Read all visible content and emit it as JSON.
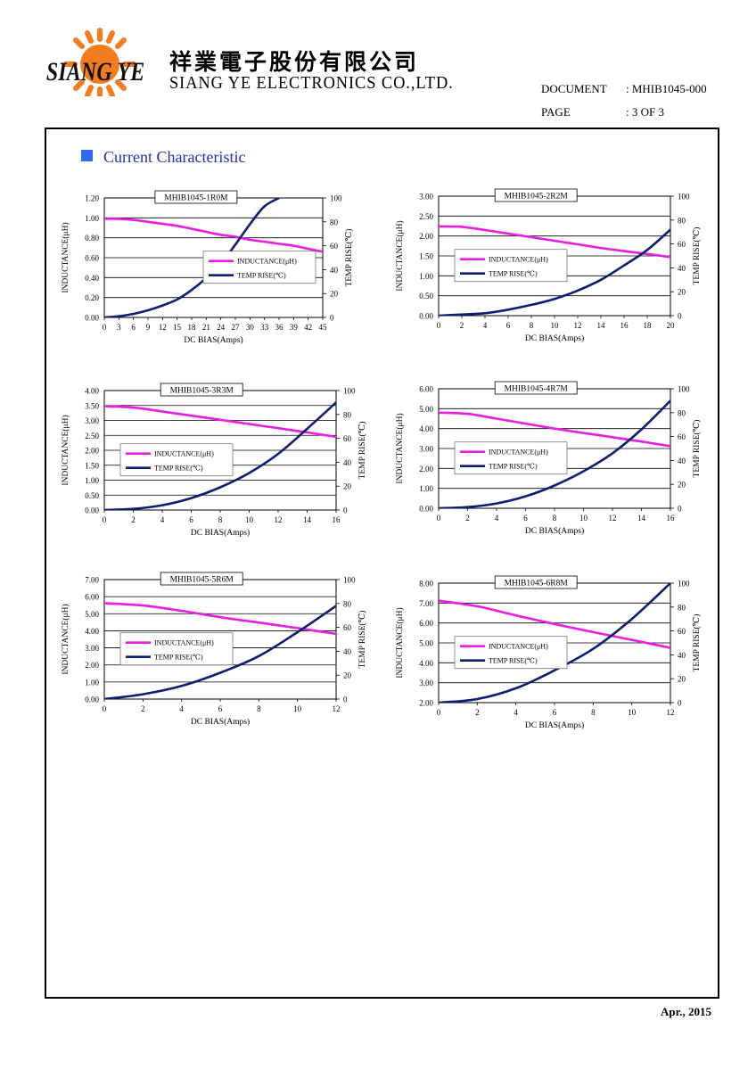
{
  "header": {
    "logo_text": "SIANG YE",
    "company_cn": "祥業電子股份有限公司",
    "company_en": "SIANG YE ELECTRONICS CO.,LTD.",
    "document_label": "DOCUMENT",
    "document_value": ": MHIB1045-000",
    "page_label": "PAGE",
    "page_value": ": 3 OF 3"
  },
  "section_title": "Current Characteristic",
  "footer_date": "Apr., 2015",
  "colors": {
    "inductance": "#e81ce3",
    "temp_rise": "#0b1e72",
    "section": "#1f2fb0",
    "marker": "#3366ff"
  },
  "chart_data": [
    {
      "type": "line",
      "title": "MHIB1045-1R0M",
      "xlabel": "DC BIAS(Amps)",
      "ylabel": "INDUCTANCE(μH)",
      "y2label": "TEMP RISE(℃)",
      "xlim": [
        0,
        45
      ],
      "ylim": [
        0,
        1.2
      ],
      "y2lim": [
        0,
        100
      ],
      "xticks": [
        "0",
        "3",
        "6",
        "9",
        "12",
        "15",
        "18",
        "21",
        "24",
        "27",
        "30",
        "33",
        "36",
        "39",
        "42",
        "45"
      ],
      "yticks": [
        "0.00",
        "0.20",
        "0.40",
        "0.60",
        "0.80",
        "1.00",
        "1.20"
      ],
      "y2ticks": [
        "0",
        "20",
        "40",
        "60",
        "80",
        "100"
      ],
      "series": [
        {
          "name": "INDUCTANCE(μH)",
          "axis": "left",
          "x": [
            0,
            3,
            6,
            9,
            12,
            15,
            18,
            21,
            24,
            27,
            30,
            33,
            36,
            39,
            42,
            45
          ],
          "values": [
            0.99,
            0.99,
            0.98,
            0.96,
            0.94,
            0.92,
            0.89,
            0.86,
            0.83,
            0.81,
            0.78,
            0.76,
            0.74,
            0.72,
            0.69,
            0.66
          ]
        },
        {
          "name": "TEMP RISE(℃)",
          "axis": "right",
          "x": [
            0,
            3,
            6,
            9,
            12,
            15,
            18,
            21,
            24,
            27,
            30,
            33,
            36
          ],
          "values": [
            0,
            1,
            3,
            6,
            10,
            15,
            23,
            33,
            45,
            61,
            78,
            93,
            100
          ]
        }
      ],
      "legend": "center-right"
    },
    {
      "type": "line",
      "title": "MHIB1045-2R2M",
      "xlabel": "DC BIAS(Amps)",
      "ylabel": "INDUCTANCE(μH)",
      "y2label": "TEMP RISE(℃)",
      "xlim": [
        0,
        20
      ],
      "ylim": [
        0,
        3
      ],
      "y2lim": [
        0,
        100
      ],
      "xticks": [
        "0",
        "2",
        "4",
        "6",
        "8",
        "10",
        "12",
        "14",
        "16",
        "18",
        "20"
      ],
      "yticks": [
        "0.00",
        "0.50",
        "1.00",
        "1.50",
        "2.00",
        "2.50",
        "3.00"
      ],
      "y2ticks": [
        "0",
        "20",
        "40",
        "60",
        "80",
        "100"
      ],
      "series": [
        {
          "name": "INDUCTANCE(μH)",
          "axis": "left",
          "x": [
            0,
            2,
            4,
            6,
            8,
            10,
            12,
            14,
            16,
            18,
            20
          ],
          "values": [
            2.24,
            2.23,
            2.15,
            2.06,
            1.97,
            1.88,
            1.79,
            1.7,
            1.62,
            1.55,
            1.47
          ]
        },
        {
          "name": "TEMP RISE(℃)",
          "axis": "right",
          "x": [
            0,
            2,
            4,
            6,
            8,
            10,
            12,
            14,
            16,
            18,
            20
          ],
          "values": [
            0,
            1,
            2,
            5,
            9,
            14,
            21,
            30,
            42,
            55,
            72
          ]
        }
      ],
      "legend": "center-left"
    },
    {
      "type": "line",
      "title": "MHIB1045-3R3M",
      "xlabel": "DC BIAS(Amps)",
      "ylabel": "INDUCTANCE(μH)",
      "y2label": "TEMP RISE(℃)",
      "xlim": [
        0,
        16
      ],
      "ylim": [
        0,
        4
      ],
      "y2lim": [
        0,
        100
      ],
      "xticks": [
        "0",
        "2",
        "4",
        "6",
        "8",
        "10",
        "12",
        "14",
        "16"
      ],
      "yticks": [
        "0.00",
        "0.50",
        "1.00",
        "1.50",
        "2.00",
        "2.50",
        "3.00",
        "3.50",
        "4.00"
      ],
      "y2ticks": [
        "0",
        "20",
        "40",
        "60",
        "80",
        "100"
      ],
      "series": [
        {
          "name": "INDUCTANCE(μH)",
          "axis": "left",
          "x": [
            0,
            2,
            4,
            6,
            8,
            10,
            12,
            14,
            16
          ],
          "values": [
            3.48,
            3.43,
            3.3,
            3.16,
            3.02,
            2.88,
            2.74,
            2.6,
            2.45
          ]
        },
        {
          "name": "TEMP RISE(℃)",
          "axis": "right",
          "x": [
            0,
            2,
            4,
            6,
            8,
            10,
            12,
            14,
            16
          ],
          "values": [
            0,
            1,
            4,
            10,
            19,
            31,
            47,
            68,
            90
          ]
        }
      ],
      "legend": "center-left"
    },
    {
      "type": "line",
      "title": "MHIB1045-4R7M",
      "xlabel": "DC BIAS(Amps)",
      "ylabel": "INDUCTANCE(μH)",
      "y2label": "TEMP RISE(℃)",
      "xlim": [
        0,
        16
      ],
      "ylim": [
        0,
        6
      ],
      "y2lim": [
        0,
        100
      ],
      "xticks": [
        "0",
        "2",
        "4",
        "6",
        "8",
        "10",
        "12",
        "14",
        "16"
      ],
      "yticks": [
        "0.00",
        "1.00",
        "2.00",
        "3.00",
        "4.00",
        "5.00",
        "6.00"
      ],
      "y2ticks": [
        "0",
        "20",
        "40",
        "60",
        "80",
        "100"
      ],
      "series": [
        {
          "name": "INDUCTANCE(μH)",
          "axis": "left",
          "x": [
            0,
            2,
            4,
            6,
            8,
            10,
            12,
            14,
            16
          ],
          "values": [
            4.8,
            4.74,
            4.5,
            4.25,
            4.0,
            3.78,
            3.57,
            3.35,
            3.12
          ]
        },
        {
          "name": "TEMP RISE(℃)",
          "axis": "right",
          "x": [
            0,
            2,
            4,
            6,
            8,
            10,
            12,
            14,
            16
          ],
          "values": [
            0,
            1,
            4,
            10,
            19,
            31,
            46,
            66,
            90
          ]
        }
      ],
      "legend": "center-left"
    },
    {
      "type": "line",
      "title": "MHIB1045-5R6M",
      "xlabel": "DC BIAS(Amps)",
      "ylabel": "INDUCTANCE(μH)",
      "y2label": "TEMP RISE(℃)",
      "xlim": [
        0,
        12
      ],
      "ylim": [
        0,
        7
      ],
      "y2lim": [
        0,
        100
      ],
      "xticks": [
        "0",
        "2",
        "4",
        "6",
        "8",
        "10",
        "12"
      ],
      "yticks": [
        "0.00",
        "1.00",
        "2.00",
        "3.00",
        "4.00",
        "5.00",
        "6.00",
        "7.00"
      ],
      "y2ticks": [
        "0",
        "20",
        "40",
        "60",
        "80",
        "100"
      ],
      "series": [
        {
          "name": "INDUCTANCE(μH)",
          "axis": "left",
          "x": [
            0,
            2,
            4,
            6,
            8,
            10,
            12
          ],
          "values": [
            5.62,
            5.48,
            5.17,
            4.8,
            4.48,
            4.16,
            3.82
          ]
        },
        {
          "name": "TEMP RISE(℃)",
          "axis": "right",
          "x": [
            0,
            2,
            4,
            6,
            8,
            10,
            12
          ],
          "values": [
            0,
            4,
            11,
            22,
            36,
            56,
            78
          ]
        }
      ],
      "legend": "center-left"
    },
    {
      "type": "line",
      "title": "MHIB1045-6R8M",
      "xlabel": "DC BIAS(Amps)",
      "ylabel": "INDUCTANCE(μH)",
      "y2label": "TEMP RISE(℃)",
      "xlim": [
        0,
        12
      ],
      "ylim": [
        2,
        8
      ],
      "y2lim": [
        0,
        100
      ],
      "xticks": [
        "0",
        "2",
        "4",
        "6",
        "8",
        "10",
        "12"
      ],
      "yticks": [
        "2.00",
        "3.00",
        "4.00",
        "5.00",
        "6.00",
        "7.00",
        "8.00"
      ],
      "y2ticks": [
        "0",
        "20",
        "40",
        "60",
        "80",
        "100"
      ],
      "series": [
        {
          "name": "INDUCTANCE(μH)",
          "axis": "left",
          "x": [
            0,
            2,
            4,
            6,
            8,
            10,
            12
          ],
          "values": [
            7.12,
            6.84,
            6.38,
            5.95,
            5.54,
            5.15,
            4.75
          ]
        },
        {
          "name": "TEMP RISE(℃)",
          "axis": "right",
          "x": [
            0,
            2,
            4,
            6,
            8,
            10,
            12
          ],
          "values": [
            0,
            3,
            12,
            27,
            45,
            70,
            100
          ]
        }
      ],
      "legend": "center-left"
    }
  ]
}
